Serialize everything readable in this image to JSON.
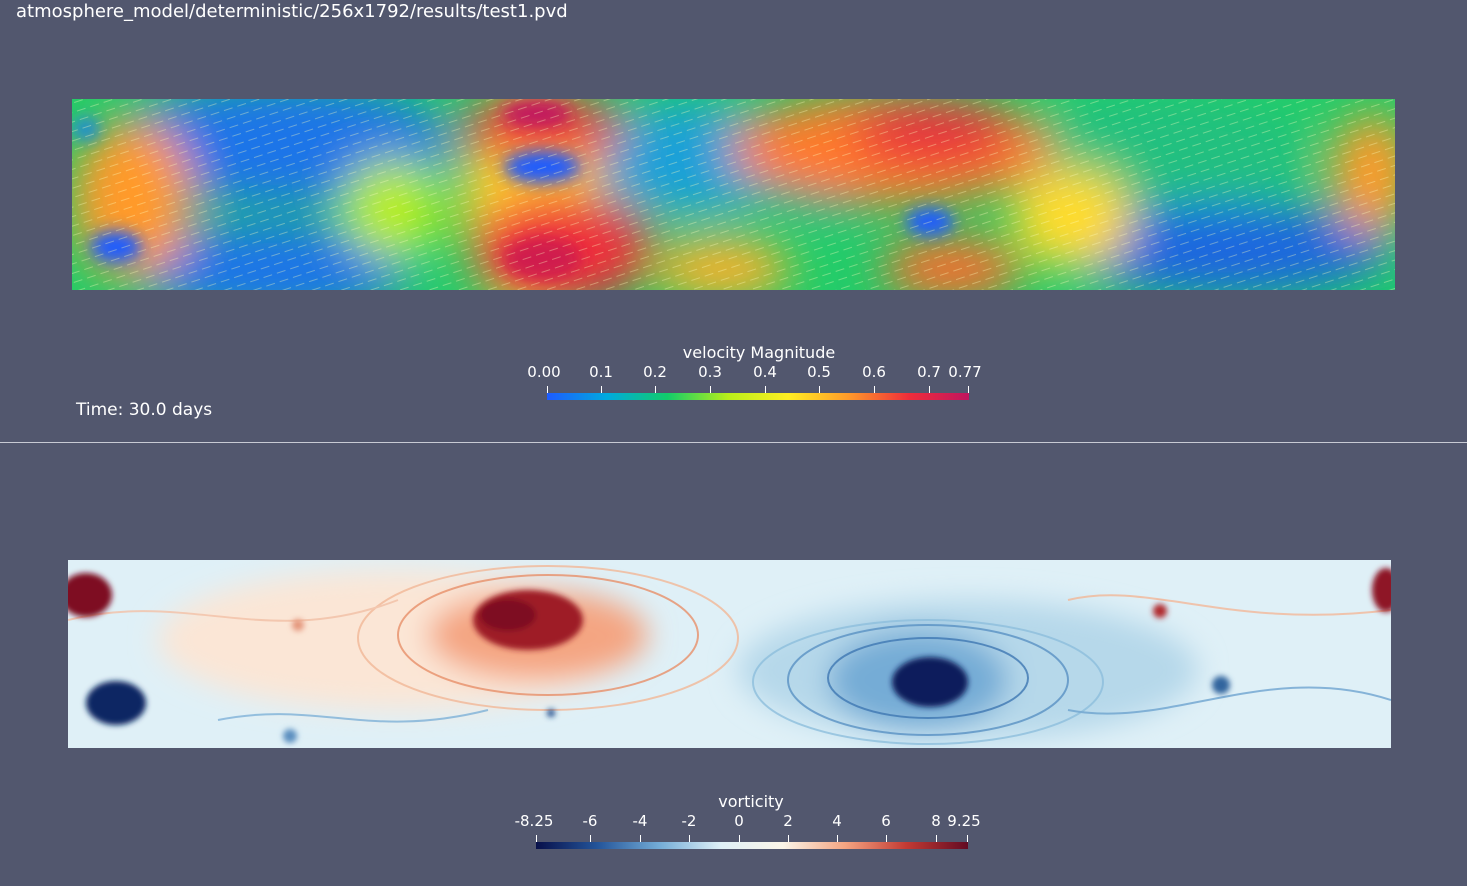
{
  "window": {
    "file_path": "atmosphere_model/deterministic/256x1792/results/test1.pvd",
    "time_label": "Time: 30.0 days"
  },
  "velocity_view": {
    "field": "velocity Magnitude",
    "colorbar": {
      "title": "velocity Magnitude",
      "tick_labels": [
        "0.00",
        "0.1",
        "0.2",
        "0.3",
        "0.4",
        "0.5",
        "0.6",
        "0.7",
        "0.77"
      ],
      "colors": [
        "#1e5bff",
        "#00aadd",
        "#12cc6a",
        "#b8ee1a",
        "#ffee22",
        "#ff9a2a",
        "#ef2d3a",
        "#c1155f"
      ]
    }
  },
  "vorticity_view": {
    "field": "vorticity",
    "colorbar": {
      "title": "vorticity",
      "tick_labels": [
        "-8.25",
        "-6",
        "-4",
        "-2",
        "0",
        "2",
        "4",
        "6",
        "8",
        "9.25"
      ],
      "colors": [
        "#08104a",
        "#24559a",
        "#74acd6",
        "#dff0f7",
        "#fbf5e8",
        "#f4a582",
        "#c23a33",
        "#630b23"
      ]
    }
  }
}
